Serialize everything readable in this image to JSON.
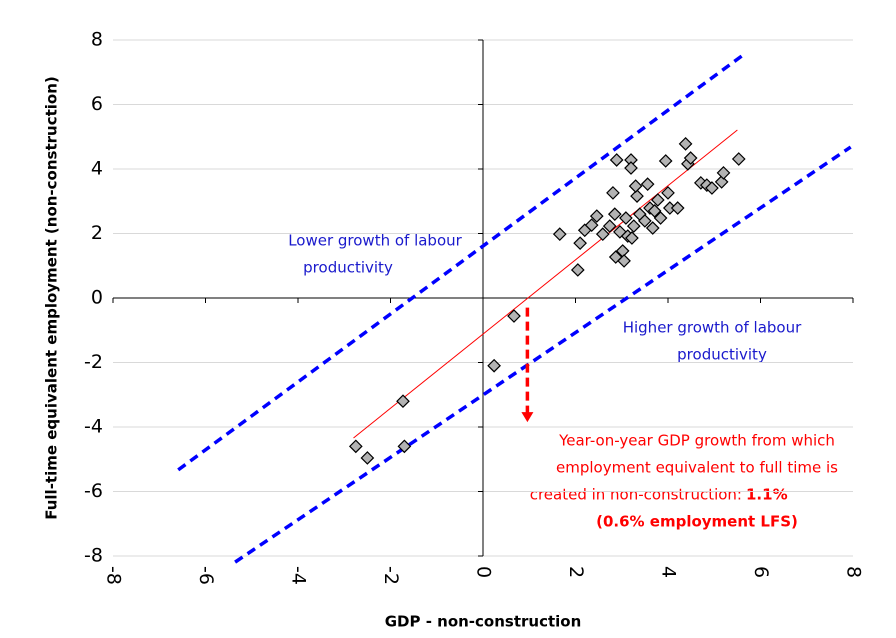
{
  "chart_data": {
    "type": "scatter",
    "x_label": "GDP - non-construction",
    "y_label": "Full-time equivalent employment (non-construction)",
    "xlim": [
      -8,
      8
    ],
    "ylim": [
      -8,
      8
    ],
    "xticks": [
      -8,
      -6,
      -4,
      -2,
      0,
      2,
      4,
      6,
      8
    ],
    "yticks": [
      -8,
      -6,
      -4,
      -2,
      0,
      2,
      4,
      6,
      8
    ],
    "grid": true,
    "color": "#b3b3b3",
    "x": [
      -1.73,
      -1.7,
      -2.75,
      -2.5,
      0.24,
      0.67,
      2.05,
      1.66,
      2.1,
      2.2,
      2.35,
      2.46,
      2.59,
      2.74,
      2.81,
      2.89,
      2.85,
      2.96,
      2.87,
      3.02,
      3.05,
      3.09,
      3.13,
      3.2,
      3.2,
      3.22,
      3.26,
      3.33,
      3.3,
      3.39,
      3.5,
      3.56,
      3.61,
      3.67,
      3.71,
      3.78,
      3.84,
      3.95,
      4.0,
      4.04,
      4.21,
      4.38,
      4.43,
      4.49,
      4.71,
      4.84,
      4.95,
      5.16,
      5.2,
      5.53
    ],
    "y": [
      -3.2,
      -4.6,
      -4.6,
      -4.96,
      -2.1,
      -0.56,
      0.87,
      1.98,
      1.7,
      2.1,
      2.26,
      2.54,
      1.98,
      2.23,
      3.26,
      4.28,
      2.6,
      2.05,
      1.27,
      1.46,
      1.15,
      2.48,
      1.92,
      4.28,
      4.03,
      1.86,
      2.23,
      3.16,
      3.47,
      2.6,
      2.39,
      3.53,
      2.79,
      2.17,
      2.7,
      3.04,
      2.48,
      4.25,
      3.26,
      2.79,
      2.79,
      4.78,
      4.16,
      4.34,
      3.57,
      3.5,
      3.41,
      3.6,
      3.88,
      4.31
    ],
    "reference_lines": [
      {
        "color": "#ff0000",
        "dashed": false,
        "x": [
          -2.8,
          5.5
        ],
        "y": [
          -4.34,
          5.21
        ]
      },
      {
        "color": "#0000ff",
        "dashed": true,
        "x": [
          -6.59,
          5.62
        ],
        "y": [
          -5.33,
          7.53
        ]
      },
      {
        "color": "#0000ff",
        "dashed": true,
        "x": [
          -5.36,
          7.95
        ],
        "y": [
          -8.19,
          4.68
        ]
      }
    ],
    "arrow": {
      "color": "#ff0000",
      "x": [
        0.96,
        0.96
      ],
      "y": [
        -0.3,
        -3.85
      ]
    },
    "annotations": {
      "lower": [
        "Lower growth of labour",
        "productivity"
      ],
      "higher": [
        "Higher growth of labour",
        "productivity"
      ],
      "breakeven": [
        "Year-on-year GDP growth from which",
        "employment equivalent to full time is",
        "created in non-construction:",
        "1.1%",
        "(0.6% employment LFS)"
      ]
    }
  }
}
